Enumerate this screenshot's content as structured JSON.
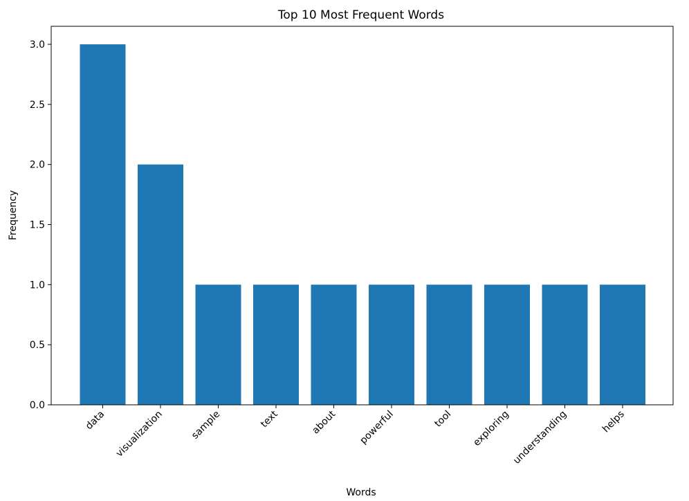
{
  "chart_data": {
    "type": "bar",
    "title": "Top 10 Most Frequent Words",
    "xlabel": "Words",
    "ylabel": "Frequency",
    "categories": [
      "data",
      "visualization",
      "sample",
      "text",
      "about",
      "powerful",
      "tool",
      "exploring",
      "understanding",
      "helps"
    ],
    "values": [
      3,
      2,
      1,
      1,
      1,
      1,
      1,
      1,
      1,
      1
    ],
    "ylim": [
      0,
      3.15
    ],
    "yticks": [
      "0.0",
      "0.5",
      "1.0",
      "1.5",
      "2.0",
      "2.5",
      "3.0"
    ],
    "bar_color": "#1f77b4",
    "grid": false,
    "legend": "none"
  }
}
